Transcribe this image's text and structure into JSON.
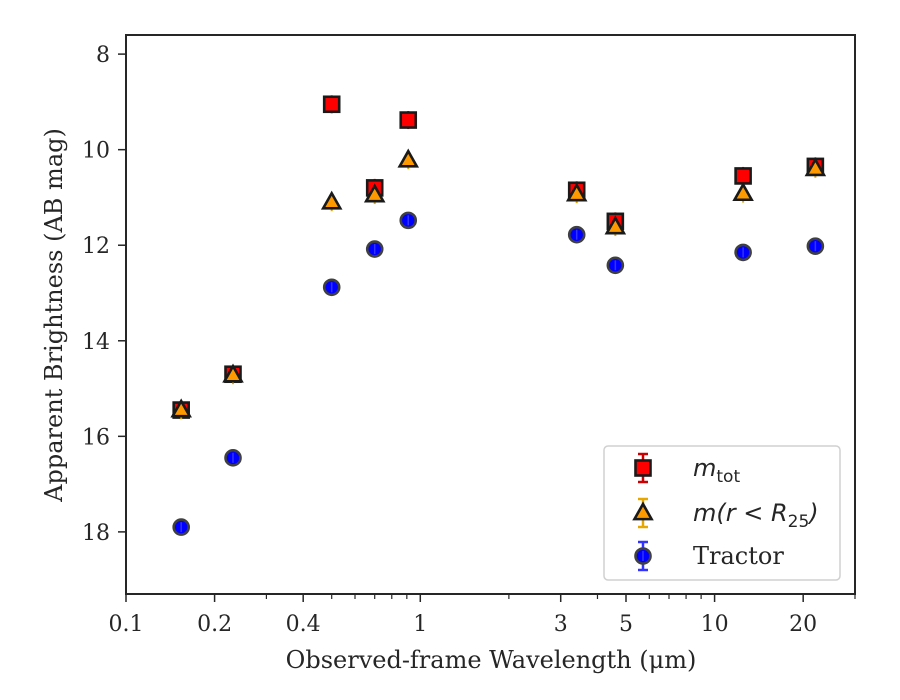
{
  "chart_data": {
    "type": "scatter",
    "title": "",
    "xlabel": "Observed-frame Wavelength (μm)",
    "ylabel": "Apparent Brightness (AB mag)",
    "xscale": "log",
    "xlim": [
      0.1,
      30
    ],
    "ylim": [
      19.3,
      7.6
    ],
    "y_inverted": true,
    "grid": false,
    "legend_position": "lower-right",
    "x_ticks": [
      {
        "value": 0.1,
        "label": "0.1"
      },
      {
        "value": 0.2,
        "label": "0.2"
      },
      {
        "value": 0.4,
        "label": "0.4"
      },
      {
        "value": 1,
        "label": "1"
      },
      {
        "value": 3,
        "label": "3"
      },
      {
        "value": 5,
        "label": "5"
      },
      {
        "value": 10,
        "label": "10"
      },
      {
        "value": 20,
        "label": "20"
      }
    ],
    "y_ticks": [
      {
        "value": 8,
        "label": "8"
      },
      {
        "value": 10,
        "label": "10"
      },
      {
        "value": 12,
        "label": "12"
      },
      {
        "value": 14,
        "label": "14"
      },
      {
        "value": 16,
        "label": "16"
      },
      {
        "value": 18,
        "label": "18"
      }
    ],
    "series": [
      {
        "name": "m_tot",
        "legend_label": {
          "base": "m",
          "sub": "tot"
        },
        "marker": "square",
        "color": "#ff0000",
        "edge_color": "#1a1a1a",
        "errorbar_color": "#cc0000",
        "x": [
          0.154,
          0.231,
          0.5,
          0.7,
          0.91,
          3.4,
          4.6,
          12.5,
          22.0
        ],
        "y": [
          15.45,
          14.7,
          9.05,
          10.8,
          9.38,
          10.85,
          11.5,
          10.55,
          10.35
        ]
      },
      {
        "name": "m(r < R_25)",
        "legend_label": {
          "pre": "m(r < R",
          "sub": "25",
          "post": ")"
        },
        "marker": "triangle",
        "color": "#ff9900",
        "edge_color": "#1a1a1a",
        "errorbar_color": "#e6a800",
        "x": [
          0.154,
          0.231,
          0.5,
          0.7,
          0.91,
          3.4,
          4.6,
          12.5,
          22.0
        ],
        "y": [
          15.45,
          14.72,
          11.1,
          10.95,
          10.22,
          10.93,
          11.62,
          10.92,
          10.4
        ]
      },
      {
        "name": "Tractor",
        "legend_label": {
          "text": "Tractor"
        },
        "marker": "circle",
        "color": "#0000ff",
        "edge_color": "#404040",
        "errorbar_color": "#3333ff",
        "x": [
          0.154,
          0.231,
          0.5,
          0.7,
          0.91,
          3.4,
          4.6,
          12.5,
          22.0
        ],
        "y": [
          17.9,
          16.45,
          12.88,
          12.08,
          11.48,
          11.78,
          12.42,
          12.15,
          12.02
        ]
      }
    ]
  }
}
